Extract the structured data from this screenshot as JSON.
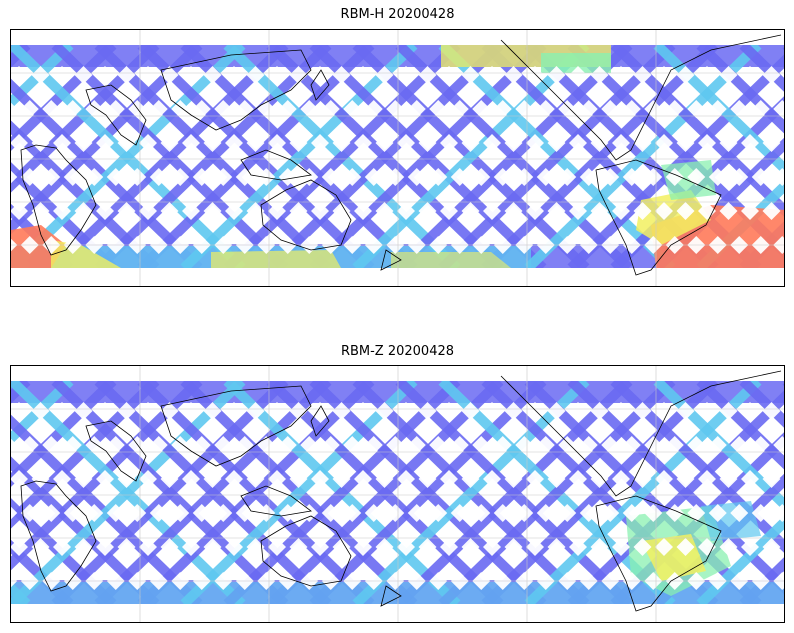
{
  "maps": [
    {
      "title": "RBM-H 20200428",
      "colors": {
        "low": "#6a6af2",
        "mid": "#5fc8f0",
        "green": "#8af0b0",
        "yellow": "#f2f060",
        "high": "#ff7a5a"
      },
      "gridlines": true,
      "coastlines": true
    },
    {
      "title": "RBM-Z 20200428",
      "colors": {
        "low": "#6a6af2",
        "mid": "#5fc8f0",
        "green": "#8af0b0",
        "yellow": "#f2f060",
        "high": "#ff7a5a"
      },
      "gridlines": true,
      "coastlines": true
    }
  ]
}
